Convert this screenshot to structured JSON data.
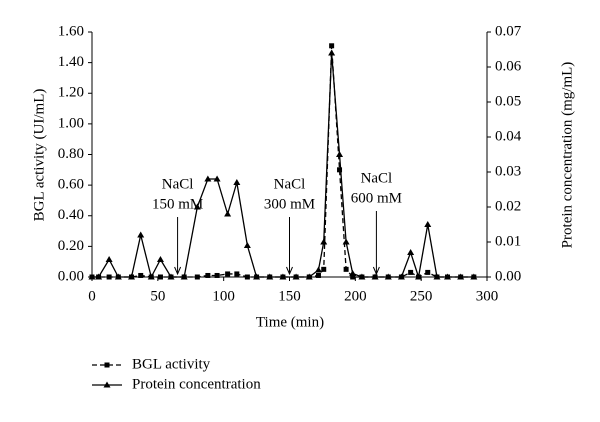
{
  "chart_data": {
    "type": "line",
    "x_label": "Time (min)",
    "y_label": "BGL activity (UI/mL)",
    "y2_label": "Protein concentration (mg/mL)",
    "x": [
      0,
      5,
      13,
      20,
      30,
      37,
      45,
      52,
      60,
      70,
      80,
      88,
      95,
      103,
      110,
      118,
      125,
      135,
      145,
      155,
      165,
      172,
      176,
      182,
      188,
      193,
      198,
      205,
      215,
      225,
      235,
      242,
      248,
      255,
      262,
      270,
      280,
      290
    ],
    "series": [
      {
        "name": "BGL activity",
        "color": "#000000",
        "axis": "y",
        "dash": true,
        "marker": "square",
        "values": [
          0,
          0,
          0,
          0,
          0,
          0.01,
          0,
          0,
          0,
          0,
          0,
          0.01,
          0.01,
          0.02,
          0.02,
          0,
          0,
          0,
          0,
          0,
          0,
          0.01,
          0.05,
          1.51,
          0.7,
          0.05,
          0,
          0,
          0,
          0,
          0,
          0.03,
          0,
          0.03,
          0,
          0,
          0,
          0
        ]
      },
      {
        "name": "Protein concentration",
        "color": "#000000",
        "axis": "y2",
        "dash": false,
        "marker": "triangle",
        "values": [
          0,
          0,
          0.005,
          0,
          0,
          0.012,
          0,
          0.005,
          0,
          0,
          0.02,
          0.028,
          0.028,
          0.018,
          0.027,
          0.009,
          0,
          0,
          0,
          0,
          0,
          0.002,
          0.01,
          0.064,
          0.035,
          0.01,
          0.001,
          0,
          0,
          0,
          0,
          0.007,
          0,
          0.015,
          0,
          0,
          0,
          0
        ]
      }
    ],
    "xlim": [
      0,
      300
    ],
    "xticks": [
      0,
      50,
      100,
      150,
      200,
      250,
      300
    ],
    "ylim": [
      0,
      1.6
    ],
    "yticks": [
      {
        "value": 0,
        "label": "0.00"
      },
      {
        "value": 0.2,
        "label": "0.20"
      },
      {
        "value": 0.4,
        "label": "0.40"
      },
      {
        "value": 0.6,
        "label": "0.60"
      },
      {
        "value": 0.8,
        "label": "0.80"
      },
      {
        "value": 1,
        "label": "1.00"
      },
      {
        "value": 1.2,
        "label": "1.20"
      },
      {
        "value": 1.4,
        "label": "1.40"
      },
      {
        "value": 1.6,
        "label": "1.60"
      }
    ],
    "y2lim": [
      0,
      0.07
    ],
    "y2ticks": [
      {
        "value": 0,
        "label": "0.00"
      },
      0.01,
      0.02,
      0.03,
      0.04,
      0.05,
      0.06,
      0.07
    ],
    "annotations": [
      {
        "lines": [
          "NaCl",
          "150 mM"
        ],
        "x": 65
      },
      {
        "lines": [
          "NaCl",
          "300 mM"
        ],
        "x": 150
      },
      {
        "lines": [
          "NaCl",
          "600 mM"
        ],
        "x": 216
      }
    ]
  }
}
